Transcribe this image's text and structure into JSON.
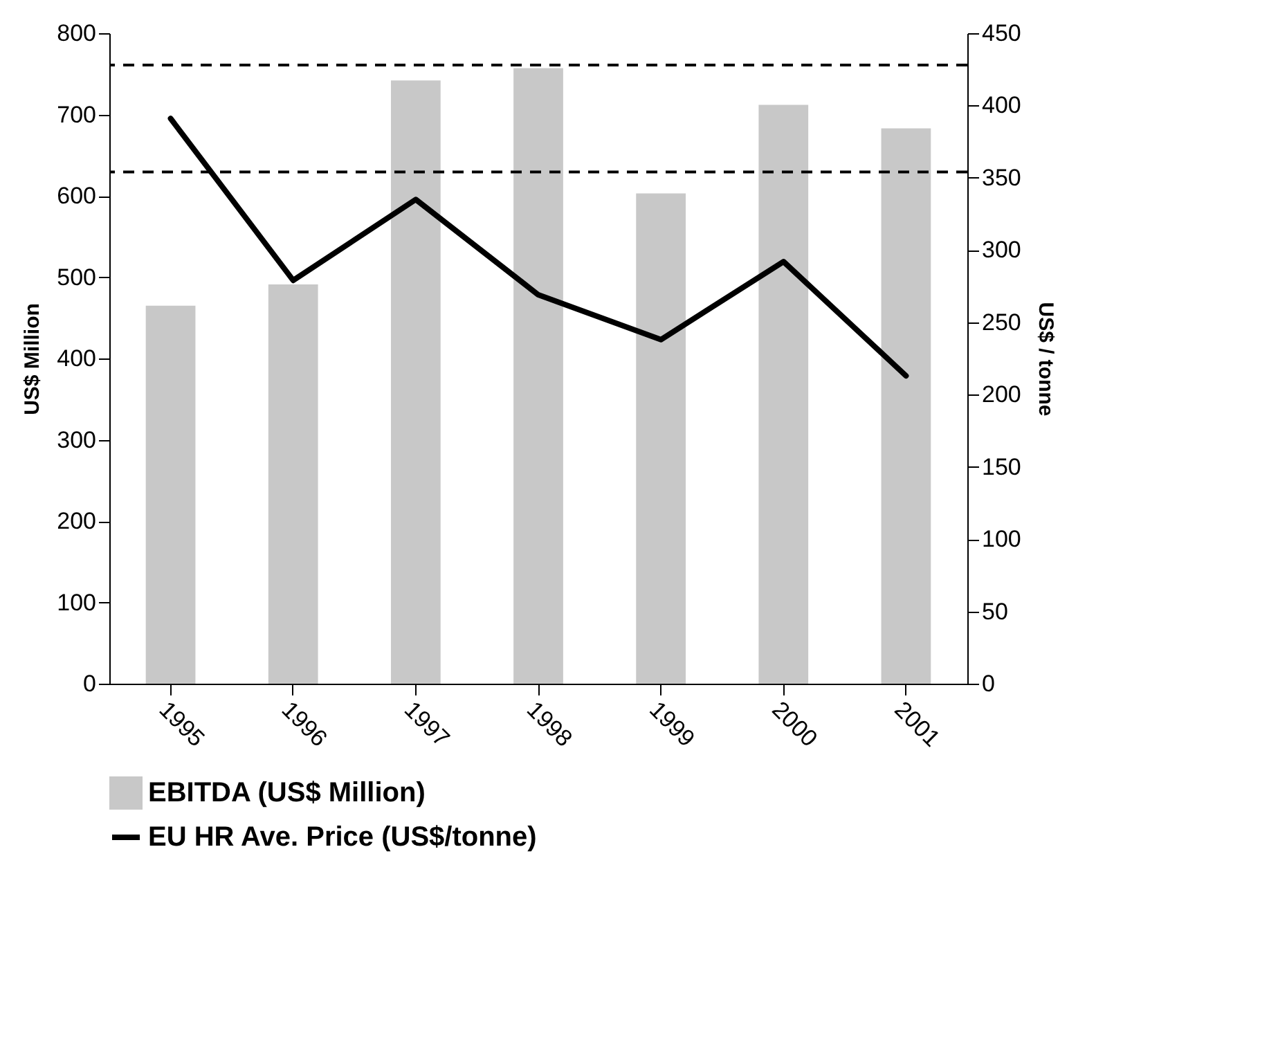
{
  "chart_data": {
    "type": "bar",
    "categories": [
      "1995",
      "1996",
      "1997",
      "1998",
      "1999",
      "2000",
      "2001"
    ],
    "series": [
      {
        "name": "EBITDA (US$ Million)",
        "color": "#c8c8c8",
        "values": [
          465,
          491,
          742,
          757,
          603,
          712,
          683
        ]
      },
      {
        "name": "EU HR Ave. Price (US$/tonne)",
        "type": "line",
        "axis": "y2",
        "color": "#000000",
        "values": [
          391,
          279,
          335,
          269,
          238,
          292,
          213
        ]
      }
    ],
    "ylabel": "US$ Million",
    "y2label": "US$ / tonne",
    "ylim": [
      0,
      800
    ],
    "yticks": [
      0,
      100,
      200,
      300,
      400,
      500,
      600,
      700,
      800
    ],
    "y2lim": [
      0,
      450
    ],
    "y2ticks": [
      0,
      50,
      100,
      150,
      200,
      250,
      300,
      350,
      400,
      450
    ],
    "ref_lines": [
      {
        "axis": "y2",
        "value": 428,
        "color": "#000000",
        "line_style": "dashed"
      },
      {
        "axis": "y2",
        "value": 354,
        "color": "#000000",
        "line_style": "dashed"
      }
    ],
    "grid": false,
    "legend": "bottom"
  }
}
